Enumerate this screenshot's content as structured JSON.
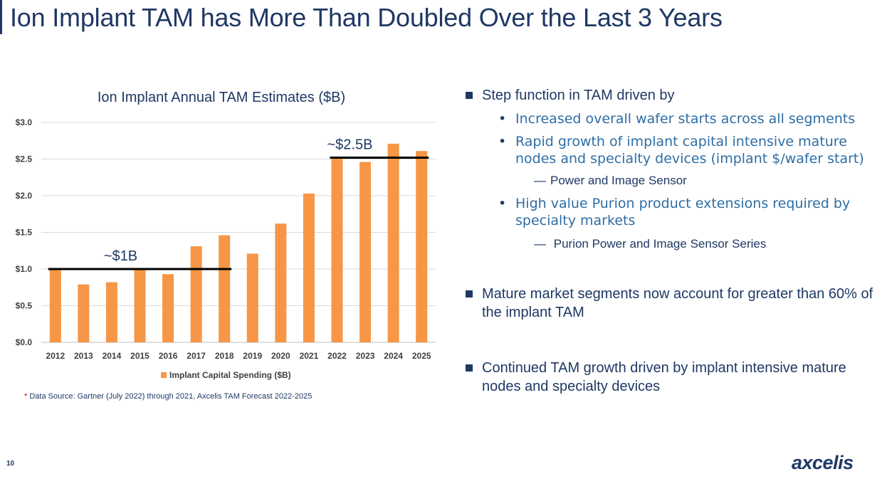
{
  "slide": {
    "title": "Ion Implant TAM has More Than Doubled Over the Last 3 Years",
    "page_number": "10",
    "logo_text": "axcelis",
    "source_star": "*",
    "source_note": "Data Source: Gartner (July 2022) through 2021, Axcelis TAM Forecast 2022-2025"
  },
  "chart_data": {
    "type": "bar",
    "title": "Ion Implant Annual TAM Estimates ($B)",
    "categories": [
      "2012",
      "2013",
      "2014",
      "2015",
      "2016",
      "2017",
      "2018",
      "2019",
      "2020",
      "2021",
      "2022",
      "2023",
      "2024",
      "2025"
    ],
    "series": [
      {
        "name": "Implant Capital Spending ($B)",
        "values": [
          1.01,
          0.79,
          0.82,
          1.01,
          0.93,
          1.31,
          1.46,
          1.21,
          1.62,
          2.03,
          2.53,
          2.46,
          2.71,
          2.61
        ],
        "color": "#f79646"
      }
    ],
    "ylim": [
      0,
      3.0
    ],
    "yticks": [
      0,
      0.5,
      1.0,
      1.5,
      2.0,
      2.5,
      3.0
    ],
    "ytick_labels": [
      "$0.0",
      "$0.5",
      "$1.0",
      "$1.5",
      "$2.0",
      "$2.5",
      "$3.0"
    ],
    "grid": true,
    "legend_position": "bottom",
    "annotations": [
      {
        "label": "~$1B",
        "value": 1.0,
        "from": "2012",
        "to": "2018"
      },
      {
        "label": "~$2.5B",
        "value": 2.52,
        "from": "2022",
        "to": "2025"
      }
    ]
  },
  "bullets": {
    "b1": "Step function in TAM driven by",
    "b1_sub1": "Increased overall wafer starts across all segments",
    "b1_sub2": "Rapid growth of implant capital intensive mature nodes and specialty devices (implant $/wafer start)",
    "b1_sub2_dash_mark": "—",
    "b1_sub2_dash": "Power and Image Sensor",
    "b1_sub3": "High value Purion product extensions required by specialty markets",
    "b1_sub3_dash_mark": "—",
    "b1_sub3_dash": "Purion Power and Image Sensor Series",
    "b2": "Mature market segments now account for greater than 60% of the implant TAM",
    "b3": "Continued TAM growth driven by implant intensive mature nodes and specialty devices",
    "dot_mark": "•"
  },
  "colors": {
    "navy": "#1f3864",
    "accent_blue": "#2e6da4",
    "bar": "#f79646",
    "grid": "#d9d9d9",
    "axis_text": "#404040"
  }
}
